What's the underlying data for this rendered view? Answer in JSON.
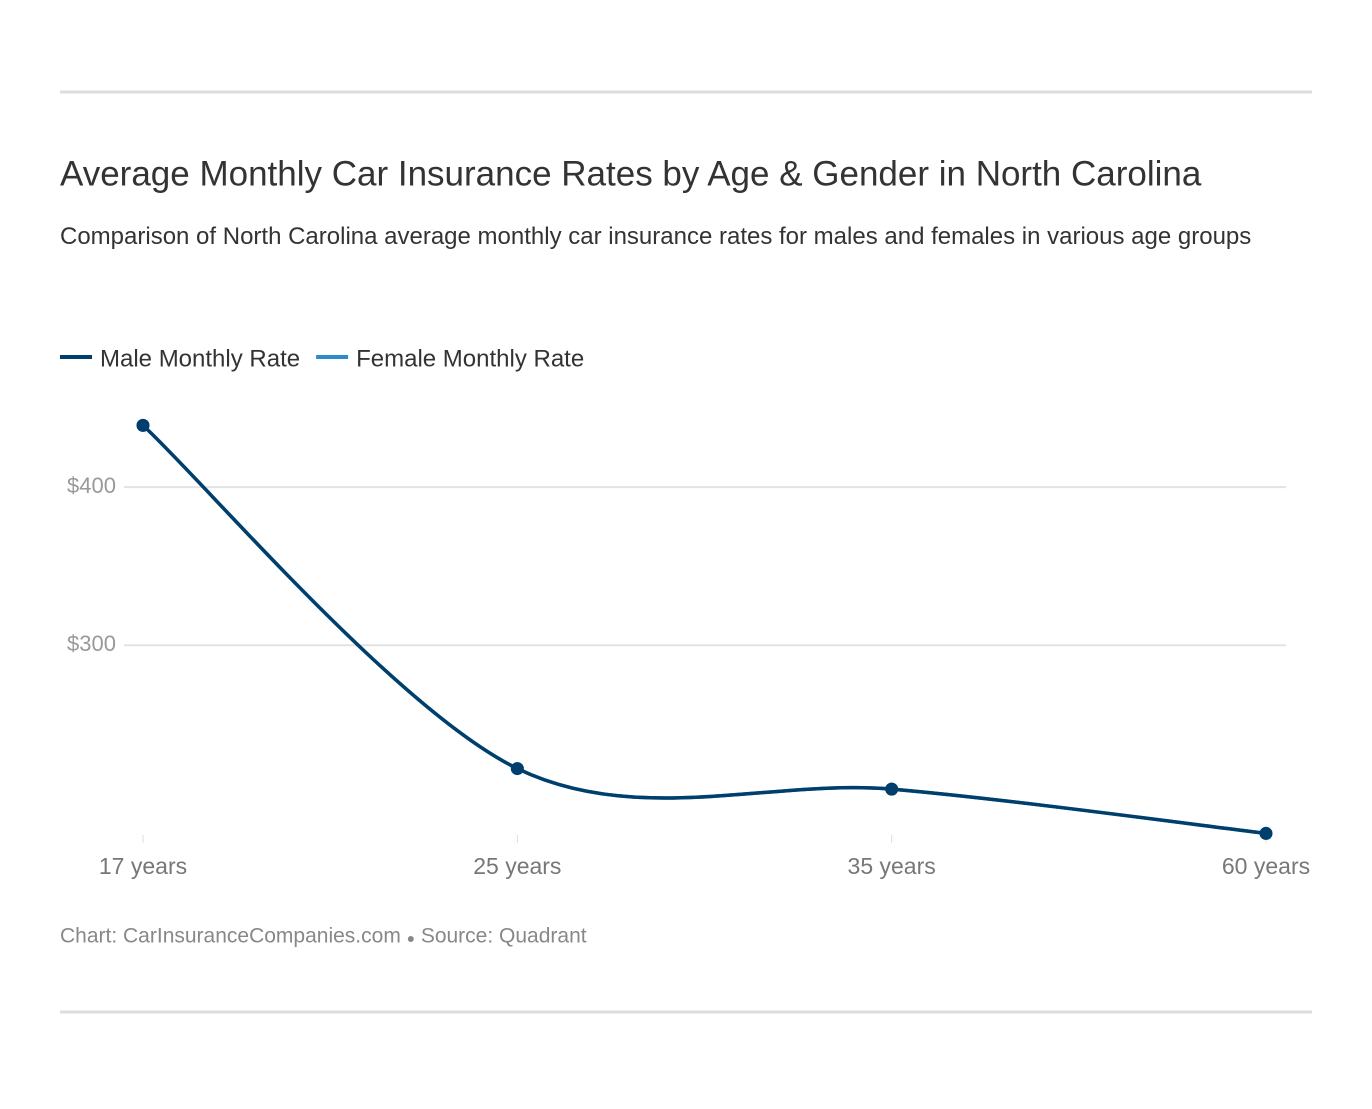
{
  "chart_data": {
    "type": "line",
    "title": "Average Monthly Car Insurance Rates by Age & Gender in North Carolina",
    "subtitle": "Comparison of North Carolina average monthly car insurance rates for males and females in various age groups",
    "categories": [
      "17 years",
      "25 years",
      "35 years",
      "60 years"
    ],
    "series": [
      {
        "name": "Male Monthly Rate",
        "color": "#003f6b",
        "values": [
          439,
          222,
          209,
          181
        ]
      },
      {
        "name": "Female Monthly Rate",
        "color": "#2e8bc9",
        "values": [
          439,
          222,
          209,
          181
        ]
      }
    ],
    "ylim": [
      180,
      450
    ],
    "yticks": [
      {
        "value": 300,
        "label": "$300"
      },
      {
        "value": 400,
        "label": "$400"
      }
    ],
    "grid": true,
    "credit": "Chart: CarInsuranceCompanies.com",
    "source": "Source: Quadrant"
  }
}
